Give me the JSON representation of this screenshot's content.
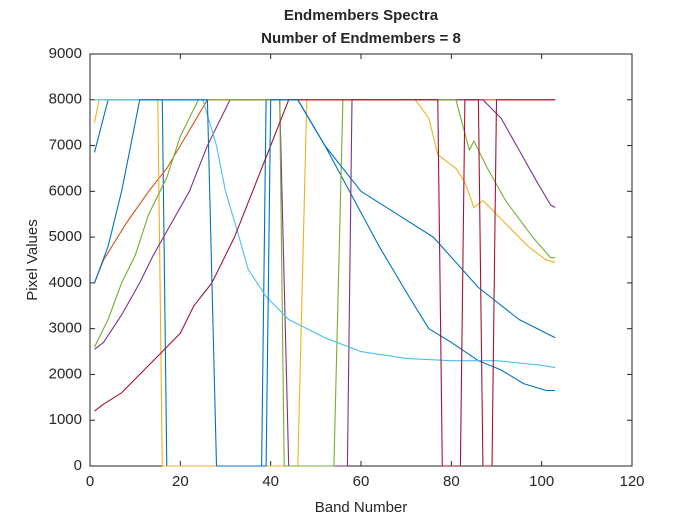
{
  "chart_data": {
    "type": "line",
    "title": "Endmembers Spectra",
    "subtitle": "Number of Endmembers = 8",
    "x_label": "Band Number",
    "y_label": "Pixel Values",
    "xlim": [
      0,
      120
    ],
    "xticks": [
      0,
      20,
      40,
      60,
      80,
      100,
      120
    ],
    "ylim": [
      0,
      9000
    ],
    "yticks": [
      0,
      1000,
      2000,
      3000,
      4000,
      5000,
      6000,
      7000,
      8000,
      9000
    ],
    "series": [
      {
        "color": "#0072BD",
        "x": [
          1,
          4,
          16,
          17,
          38,
          39,
          46,
          52,
          58,
          64,
          70,
          75,
          80,
          86,
          91,
          96,
          101,
          103
        ],
        "values": [
          6850,
          8000,
          8000,
          0,
          0,
          8000,
          8000,
          7000,
          5900,
          4800,
          3800,
          3000,
          2700,
          2300,
          2100,
          1800,
          1650,
          1650
        ]
      },
      {
        "color": "#D95319",
        "x": [
          1,
          3,
          8,
          13,
          17,
          20,
          23,
          26,
          103
        ],
        "values": [
          4000,
          4500,
          5300,
          6000,
          6500,
          7000,
          7500,
          8000,
          8000
        ]
      },
      {
        "color": "#EDB120",
        "x": [
          1,
          2,
          15,
          16,
          46,
          48,
          72,
          75,
          77,
          81,
          83,
          85,
          87,
          92,
          97,
          101,
          103
        ],
        "values": [
          7500,
          8000,
          8000,
          0,
          0,
          8000,
          8000,
          7600,
          6800,
          6500,
          6200,
          5650,
          5800,
          5300,
          4800,
          4500,
          4450
        ]
      },
      {
        "color": "#7E2F8E",
        "x": [
          1,
          3,
          7,
          11,
          14,
          18,
          22,
          26,
          31,
          42,
          44,
          57,
          58,
          87,
          91,
          95,
          99,
          102,
          103
        ],
        "values": [
          2550,
          2700,
          3300,
          4000,
          4600,
          5300,
          6000,
          7000,
          8000,
          8000,
          0,
          0,
          8000,
          8000,
          7600,
          6900,
          6200,
          5700,
          5650
        ]
      },
      {
        "color": "#77AC30",
        "x": [
          1,
          4,
          7,
          10,
          13,
          17,
          20,
          24,
          42,
          43,
          54,
          56,
          81,
          84,
          85,
          88,
          92,
          98,
          102,
          103
        ],
        "values": [
          2600,
          3200,
          4000,
          4600,
          5500,
          6300,
          7200,
          8000,
          8000,
          0,
          0,
          8000,
          8000,
          6900,
          7100,
          6500,
          5800,
          5000,
          4550,
          4550
        ]
      },
      {
        "color": "#4DBEEE",
        "x": [
          1,
          25,
          28,
          30,
          33,
          35,
          39,
          44,
          52,
          60,
          70,
          80,
          90,
          100,
          103
        ],
        "values": [
          8000,
          8000,
          7000,
          6000,
          5000,
          4300,
          3700,
          3200,
          2800,
          2500,
          2350,
          2300,
          2300,
          2200,
          2150
        ]
      },
      {
        "color": "#A2142F",
        "x": [
          1,
          3,
          7,
          12,
          16,
          20,
          23,
          27,
          32,
          36,
          40,
          44,
          77,
          78,
          82,
          83,
          86,
          87,
          89,
          90,
          103
        ],
        "values": [
          1200,
          1350,
          1600,
          2100,
          2500,
          2900,
          3500,
          4000,
          5000,
          6000,
          7000,
          8000,
          8000,
          0,
          0,
          8000,
          8000,
          0,
          0,
          8000,
          8000
        ]
      },
      {
        "color": "#0072BD",
        "x": [
          1,
          4,
          7,
          9,
          11,
          26,
          28,
          39,
          40,
          46,
          52,
          60,
          68,
          76,
          86,
          95,
          103
        ],
        "values": [
          4000,
          4800,
          6000,
          7000,
          8000,
          8000,
          0,
          0,
          8000,
          8000,
          7000,
          6000,
          5500,
          5000,
          3900,
          3200,
          2800
        ]
      }
    ]
  }
}
